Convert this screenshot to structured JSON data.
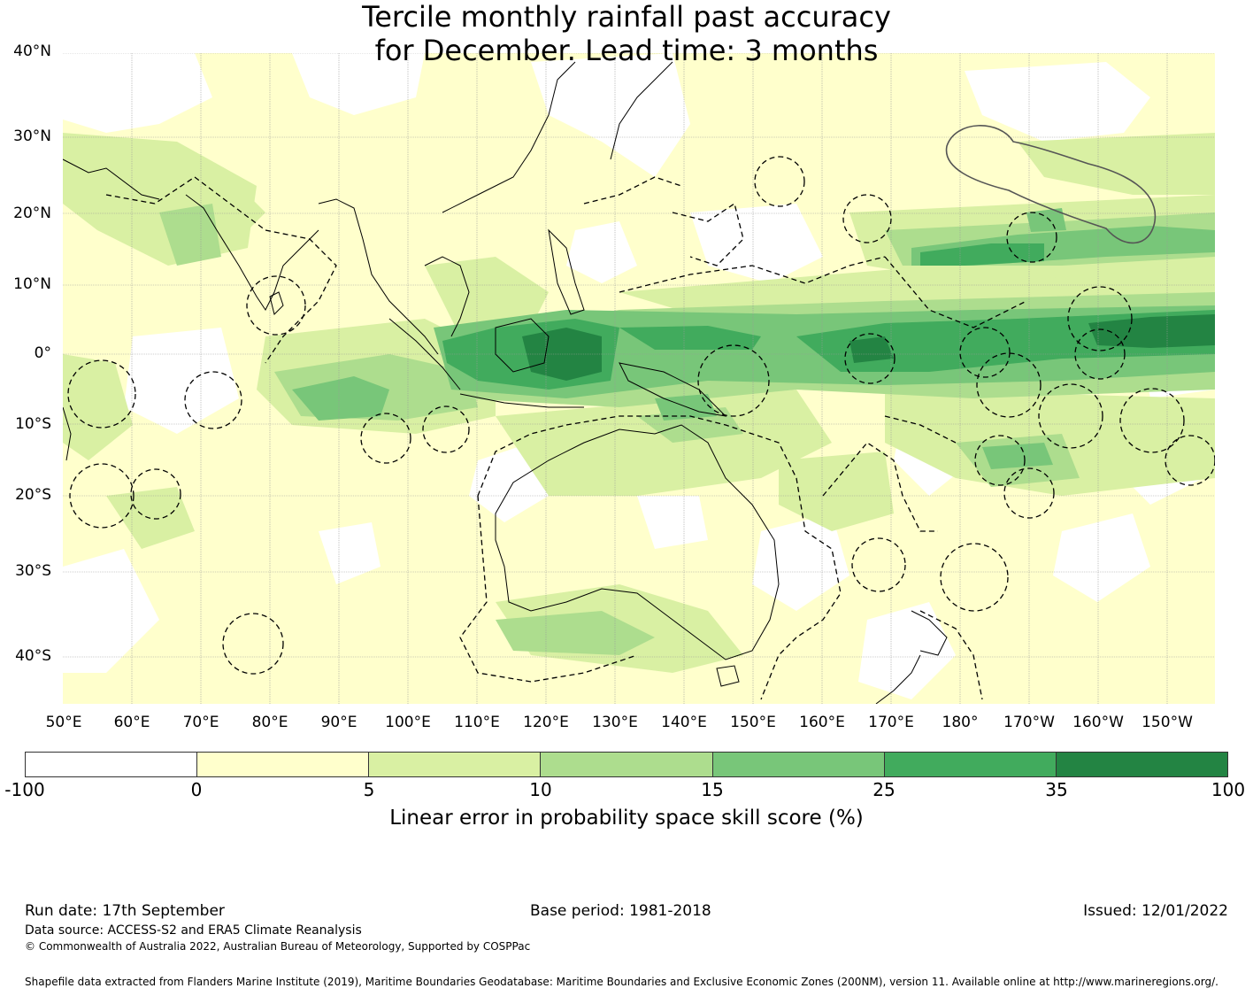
{
  "title": {
    "line1": "Tercile monthly rainfall past accuracy",
    "line2": "for December. Lead time: 3 months"
  },
  "map": {
    "lat_labels": [
      "40°N",
      "30°N",
      "20°N",
      "10°N",
      "0°",
      "10°S",
      "20°S",
      "30°S",
      "40°S"
    ],
    "lon_labels": [
      "50°E",
      "60°E",
      "70°E",
      "80°E",
      "90°E",
      "100°E",
      "110°E",
      "120°E",
      "130°E",
      "140°E",
      "150°E",
      "160°E",
      "170°E",
      "180°",
      "170°W",
      "160°W",
      "150°W"
    ],
    "colors": {
      "band_neg": "#ffffff",
      "band_0_5": "#ffffcc",
      "band_5_10": "#d9f0a3",
      "band_10_15": "#addd8e",
      "band_15_25": "#78c679",
      "band_25_35": "#41ab5d",
      "band_35_100": "#238443",
      "coast": "#000000"
    }
  },
  "colorbar": {
    "colors": [
      "#ffffff",
      "#ffffcc",
      "#d9f0a3",
      "#addd8e",
      "#78c679",
      "#41ab5d",
      "#238443"
    ],
    "ticks": [
      "-100",
      "0",
      "5",
      "10",
      "15",
      "25",
      "35",
      "100"
    ],
    "title": "Linear error in probability space skill score (%)"
  },
  "footer": {
    "run_date": "Run date: 17th September",
    "base_period": "Base period: 1981-2018",
    "issued": "Issued: 12/01/2022",
    "data_source": "Data source: ACCESS-S2 and ERA5 Climate Reanalysis",
    "copyright": "© Commonwealth of Australia 2022, Australian Bureau of Meteorology, Supported by COSPPac",
    "shapefile": "Shapefile data extracted from Flanders Marine Institute (2019), Maritime Boundaries Geodatabase: Maritime Boundaries and Exclusive Economic Zones (200NM), version 11. Available online at http://www.marineregions.org/."
  }
}
